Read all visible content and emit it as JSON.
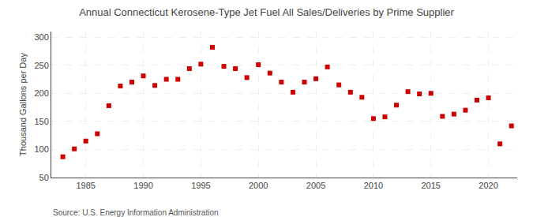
{
  "chart_data": {
    "type": "scatter",
    "title": "Annual Connecticut Kerosene-Type Jet Fuel All Sales/Deliveries by Prime Supplier",
    "ylabel": "Thousand Gallons per Day",
    "source": "Source: U.S. Energy Information Administration",
    "color": "#cc0000",
    "marker": "square",
    "grid": true,
    "xlim": [
      1982.0,
      2022.5
    ],
    "xticks": [
      1985,
      1990,
      1995,
      2000,
      2005,
      2010,
      2015,
      2020
    ],
    "ylim": [
      50,
      310
    ],
    "yticks": [
      50,
      100,
      150,
      200,
      250,
      300
    ],
    "x": [
      1983,
      1984,
      1985,
      1986,
      1987,
      1988,
      1989,
      1990,
      1991,
      1992,
      1993,
      1994,
      1995,
      1996,
      1997,
      1998,
      1999,
      2000,
      2001,
      2002,
      2003,
      2004,
      2005,
      2006,
      2007,
      2008,
      2009,
      2010,
      2011,
      2012,
      2013,
      2014,
      2015,
      2016,
      2017,
      2018,
      2019,
      2020,
      2021,
      2022
    ],
    "values": [
      87,
      101,
      115,
      128,
      178,
      213,
      220,
      231,
      214,
      225,
      225,
      244,
      252,
      282,
      248,
      244,
      228,
      251,
      236,
      220,
      202,
      220,
      226,
      247,
      215,
      202,
      193,
      155,
      158,
      179,
      203,
      199,
      200,
      159,
      163,
      170,
      188,
      192,
      110,
      142
    ]
  }
}
